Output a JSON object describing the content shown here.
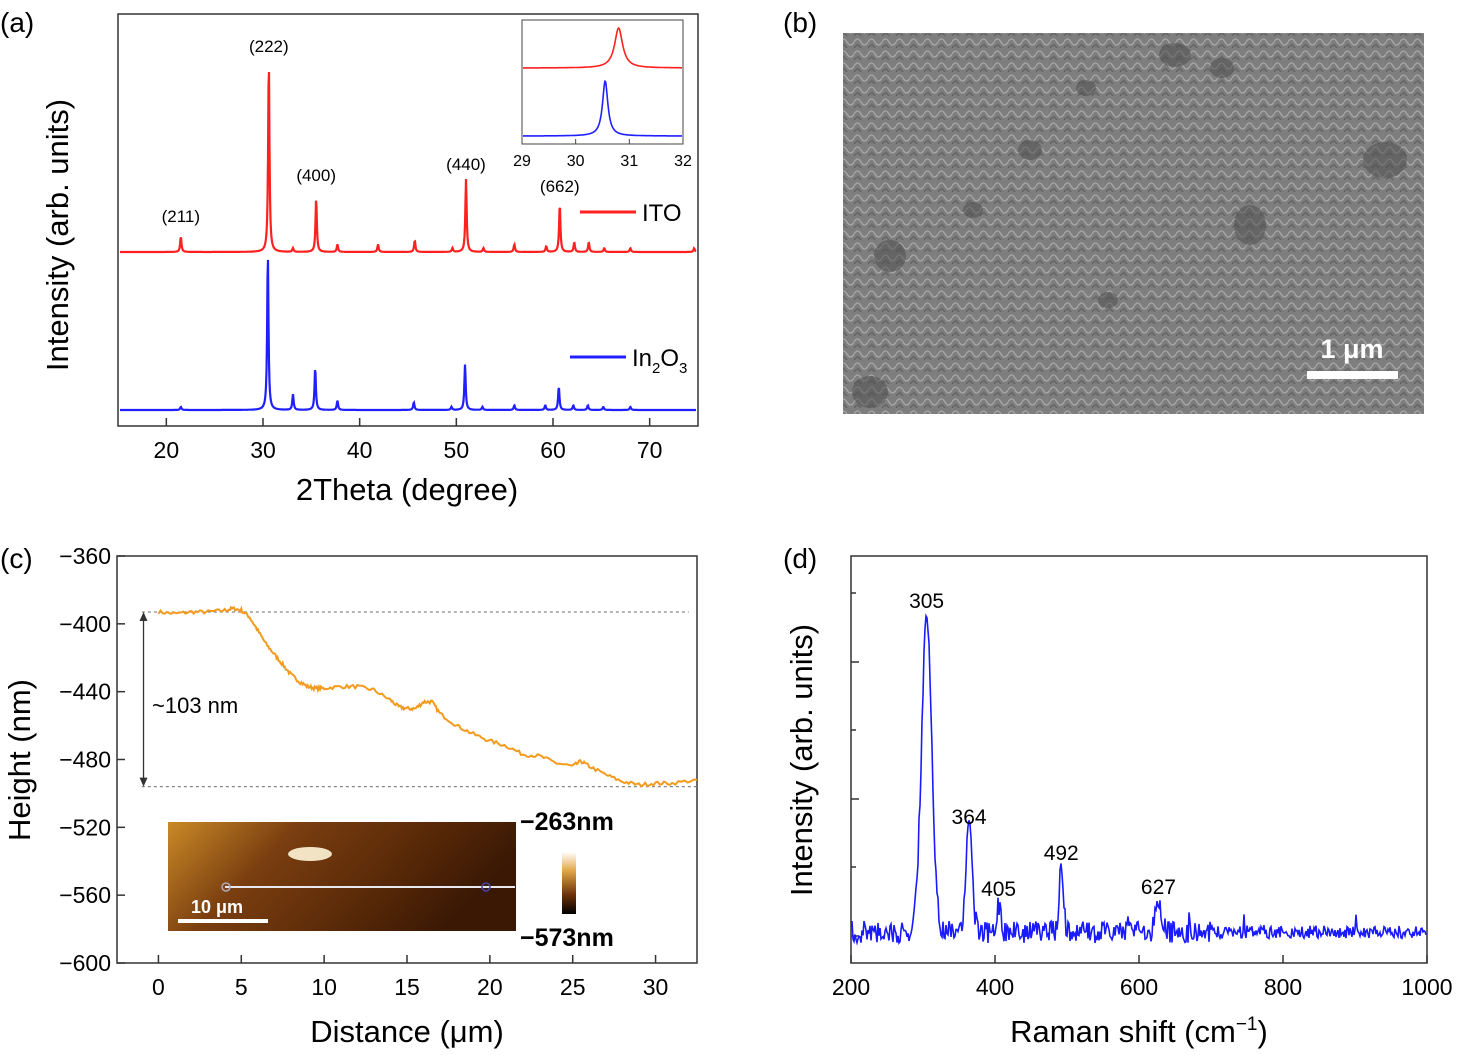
{
  "chart_data": [
    {
      "panel": "(a)",
      "type": "line",
      "xlabel": "2Theta (degree)",
      "ylabel": "Intensity (arb. units)",
      "xlim": [
        15,
        75
      ],
      "xticks": [
        20,
        30,
        40,
        50,
        60,
        70
      ],
      "y_tick_labels": false,
      "series": [
        {
          "name": "ITO",
          "color": "#ff2020",
          "peaks": [
            {
              "x": 21.5,
              "h": 0.08
            },
            {
              "x": 30.6,
              "h": 1.0
            },
            {
              "x": 33.1,
              "h": 0.02
            },
            {
              "x": 35.5,
              "h": 0.28
            },
            {
              "x": 37.7,
              "h": 0.04
            },
            {
              "x": 41.9,
              "h": 0.04
            },
            {
              "x": 45.7,
              "h": 0.06
            },
            {
              "x": 49.6,
              "h": 0.02
            },
            {
              "x": 51.0,
              "h": 0.38
            },
            {
              "x": 52.8,
              "h": 0.02
            },
            {
              "x": 56.0,
              "h": 0.04
            },
            {
              "x": 59.3,
              "h": 0.03
            },
            {
              "x": 60.7,
              "h": 0.25
            },
            {
              "x": 62.2,
              "h": 0.05
            },
            {
              "x": 63.7,
              "h": 0.05
            },
            {
              "x": 65.3,
              "h": 0.02
            },
            {
              "x": 68.0,
              "h": 0.02
            },
            {
              "x": 74.6,
              "h": 0.02
            }
          ]
        },
        {
          "name": "In2O3",
          "color": "#2020ff",
          "peaks": [
            {
              "x": 21.5,
              "h": 0.02
            },
            {
              "x": 30.5,
              "h": 1.0
            },
            {
              "x": 33.1,
              "h": 0.1
            },
            {
              "x": 35.4,
              "h": 0.27
            },
            {
              "x": 37.7,
              "h": 0.06
            },
            {
              "x": 45.6,
              "h": 0.05
            },
            {
              "x": 49.5,
              "h": 0.02
            },
            {
              "x": 50.9,
              "h": 0.29
            },
            {
              "x": 52.7,
              "h": 0.02
            },
            {
              "x": 56.0,
              "h": 0.03
            },
            {
              "x": 59.2,
              "h": 0.03
            },
            {
              "x": 60.6,
              "h": 0.15
            },
            {
              "x": 62.1,
              "h": 0.03
            },
            {
              "x": 63.6,
              "h": 0.03
            },
            {
              "x": 65.2,
              "h": 0.02
            },
            {
              "x": 68.0,
              "h": 0.02
            }
          ]
        }
      ],
      "peak_labels": [
        {
          "text": "(211)",
          "x": 21.5
        },
        {
          "text": "(222)",
          "x": 30.6
        },
        {
          "text": "(400)",
          "x": 35.5
        },
        {
          "text": "(440)",
          "x": 51.0
        },
        {
          "text": "(662)",
          "x": 60.7
        }
      ],
      "legend": [
        "ITO",
        "In2O3"
      ],
      "inset": {
        "xlim": [
          29,
          32
        ],
        "xticks": [
          29,
          30,
          31,
          32
        ],
        "peaks": [
          {
            "series": "ITO",
            "x": 30.8
          },
          {
            "series": "In2O3",
            "x": 30.55
          }
        ]
      }
    },
    {
      "panel": "(b)",
      "type": "image",
      "scale_bar": "1 μm"
    },
    {
      "panel": "(c)",
      "type": "line",
      "xlabel": "Distance (μm)",
      "ylabel": "Height (nm)",
      "xlim": [
        -2.5,
        32.5
      ],
      "ylim": [
        -600,
        -360
      ],
      "xticks": [
        0,
        5,
        10,
        15,
        20,
        25,
        30
      ],
      "yticks": [
        -360,
        -400,
        -440,
        -480,
        -520,
        -560,
        -600
      ],
      "series": [
        {
          "color": "#f39b1e",
          "x": [
            0,
            1,
            2,
            3,
            4,
            4.5,
            5,
            5.5,
            6,
            6.5,
            7,
            7.5,
            8,
            8.5,
            9,
            9.5,
            10,
            11,
            12,
            13,
            14,
            14.5,
            15,
            15.5,
            16,
            16.5,
            17,
            18,
            19,
            20,
            21,
            22,
            23,
            24,
            25,
            25.5,
            26,
            27,
            28,
            29,
            30,
            31,
            32.5
          ],
          "y": [
            -393,
            -394,
            -393,
            -393,
            -392,
            -391,
            -392,
            -396,
            -404,
            -412,
            -418,
            -424,
            -430,
            -434,
            -437,
            -438,
            -438,
            -437,
            -437,
            -439,
            -445,
            -449,
            -450,
            -450,
            -446,
            -446,
            -453,
            -460,
            -465,
            -469,
            -472,
            -477,
            -478,
            -482,
            -484,
            -481,
            -484,
            -489,
            -493,
            -495,
            -494,
            -494,
            -492
          ]
        }
      ],
      "annotation": "~103 nm",
      "reference_lines_nm": [
        -393,
        -496
      ],
      "inset": {
        "scale_bar": "10 μm",
        "colorbar_max": "−263nm",
        "colorbar_min": "−573nm"
      }
    },
    {
      "panel": "(d)",
      "type": "line",
      "xlabel": "Raman shift (cm⁻¹)",
      "ylabel": "Intensity (arb. units)",
      "xlim": [
        200,
        1000
      ],
      "xticks": [
        200,
        400,
        600,
        800,
        1000
      ],
      "y_tick_labels": false,
      "series": [
        {
          "color": "#1a1aff",
          "peaks": [
            {
              "x": 305,
              "h": 1.0
            },
            {
              "x": 364,
              "h": 0.38
            },
            {
              "x": 405,
              "h": 0.08
            },
            {
              "x": 492,
              "h": 0.23
            },
            {
              "x": 627,
              "h": 0.09
            }
          ]
        }
      ],
      "peak_labels": [
        {
          "text": "305",
          "x": 305
        },
        {
          "text": "364",
          "x": 364
        },
        {
          "text": "405",
          "x": 405
        },
        {
          "text": "492",
          "x": 492
        },
        {
          "text": "627",
          "x": 627
        }
      ]
    }
  ]
}
